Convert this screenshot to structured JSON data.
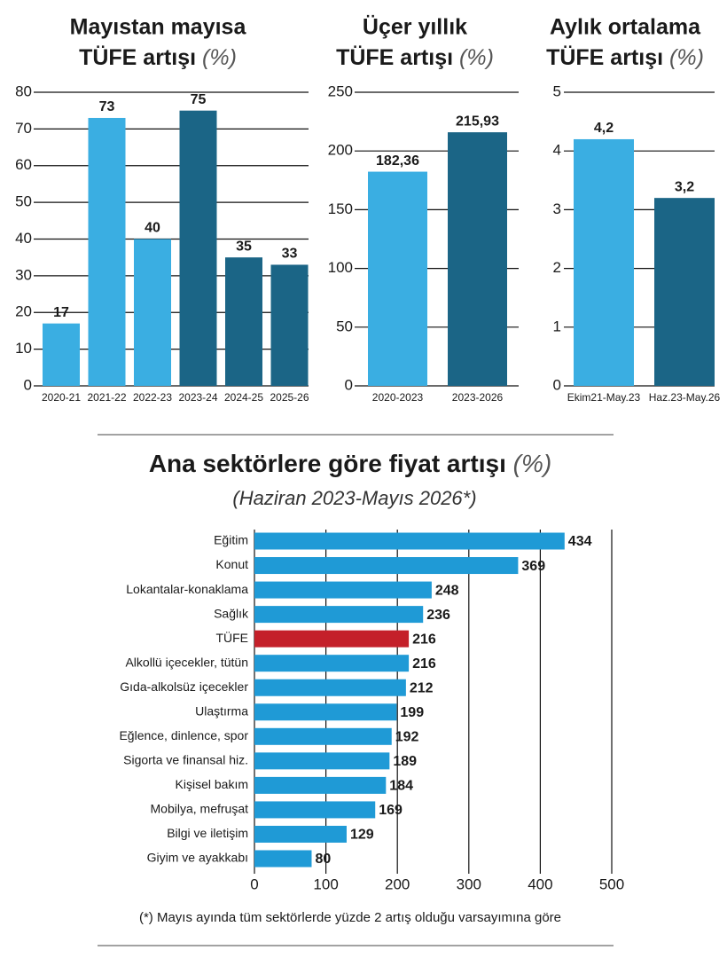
{
  "chart_data": [
    {
      "type": "bar",
      "title": [
        "Mayıstan mayısa",
        "TÜFE artışı"
      ],
      "unit": "(%)",
      "categories": [
        "2020-21",
        "2021-22",
        "2022-23",
        "2023-24",
        "2024-25",
        "2025-26"
      ],
      "values": [
        17,
        73,
        40,
        75,
        35,
        33
      ],
      "colors": [
        "#3aaee2",
        "#3aaee2",
        "#3aaee2",
        "#1b6586",
        "#1b6586",
        "#1b6586"
      ],
      "ylim": [
        0,
        80
      ],
      "yticks": [
        0,
        10,
        20,
        30,
        40,
        50,
        60,
        70,
        80
      ],
      "grid": true
    },
    {
      "type": "bar",
      "title": [
        "Üçer yıllık",
        "TÜFE artışı"
      ],
      "unit": "(%)",
      "categories": [
        "2020-2023",
        "2023-2026"
      ],
      "values": [
        182.36,
        215.93
      ],
      "value_labels": [
        "182,36",
        "215,93"
      ],
      "colors": [
        "#3aaee2",
        "#1b6586"
      ],
      "ylim": [
        0,
        250
      ],
      "yticks": [
        0,
        50,
        100,
        150,
        200,
        250
      ],
      "grid": true
    },
    {
      "type": "bar",
      "title": [
        "Aylık ortalama",
        "TÜFE artışı"
      ],
      "unit": "(%)",
      "categories": [
        "Ekim21-May.23",
        "Haz.23-May.26"
      ],
      "values": [
        4.2,
        3.2
      ],
      "value_labels": [
        "4,2",
        "3,2"
      ],
      "colors": [
        "#3aaee2",
        "#1b6586"
      ],
      "ylim": [
        0,
        5
      ],
      "yticks": [
        0,
        1,
        2,
        3,
        4,
        5
      ],
      "grid": true
    },
    {
      "type": "barh",
      "title": "Ana sektörlere göre fiyat artışı",
      "unit": "(%)",
      "subtitle": "(Haziran 2023-Mayıs 2026*)",
      "categories": [
        "Eğitim",
        "Konut",
        "Lokantalar-konaklama",
        "Sağlık",
        "TÜFE",
        "Alkollü içecekler, tütün",
        "Gıda-alkolsüz içecekler",
        "Ulaştırma",
        "Eğlence, dinlence, spor",
        "Sigorta ve finansal hiz.",
        "Kişisel bakım",
        "Mobilya, mefruşat",
        "Bilgi ve iletişim",
        "Giyim ve ayakkabı"
      ],
      "values": [
        434,
        369,
        248,
        236,
        216,
        216,
        212,
        199,
        192,
        189,
        184,
        169,
        129,
        80
      ],
      "colors": [
        "#1f9ad6",
        "#1f9ad6",
        "#1f9ad6",
        "#1f9ad6",
        "#c4202a",
        "#1f9ad6",
        "#1f9ad6",
        "#1f9ad6",
        "#1f9ad6",
        "#1f9ad6",
        "#1f9ad6",
        "#1f9ad6",
        "#1f9ad6",
        "#1f9ad6"
      ],
      "xlim": [
        0,
        500
      ],
      "xticks": [
        0,
        100,
        200,
        300,
        400,
        500
      ],
      "grid": true,
      "note": "(*) Mayıs ayında tüm sektörlerde yüzde 2 artış olduğu varsayımına göre"
    }
  ]
}
